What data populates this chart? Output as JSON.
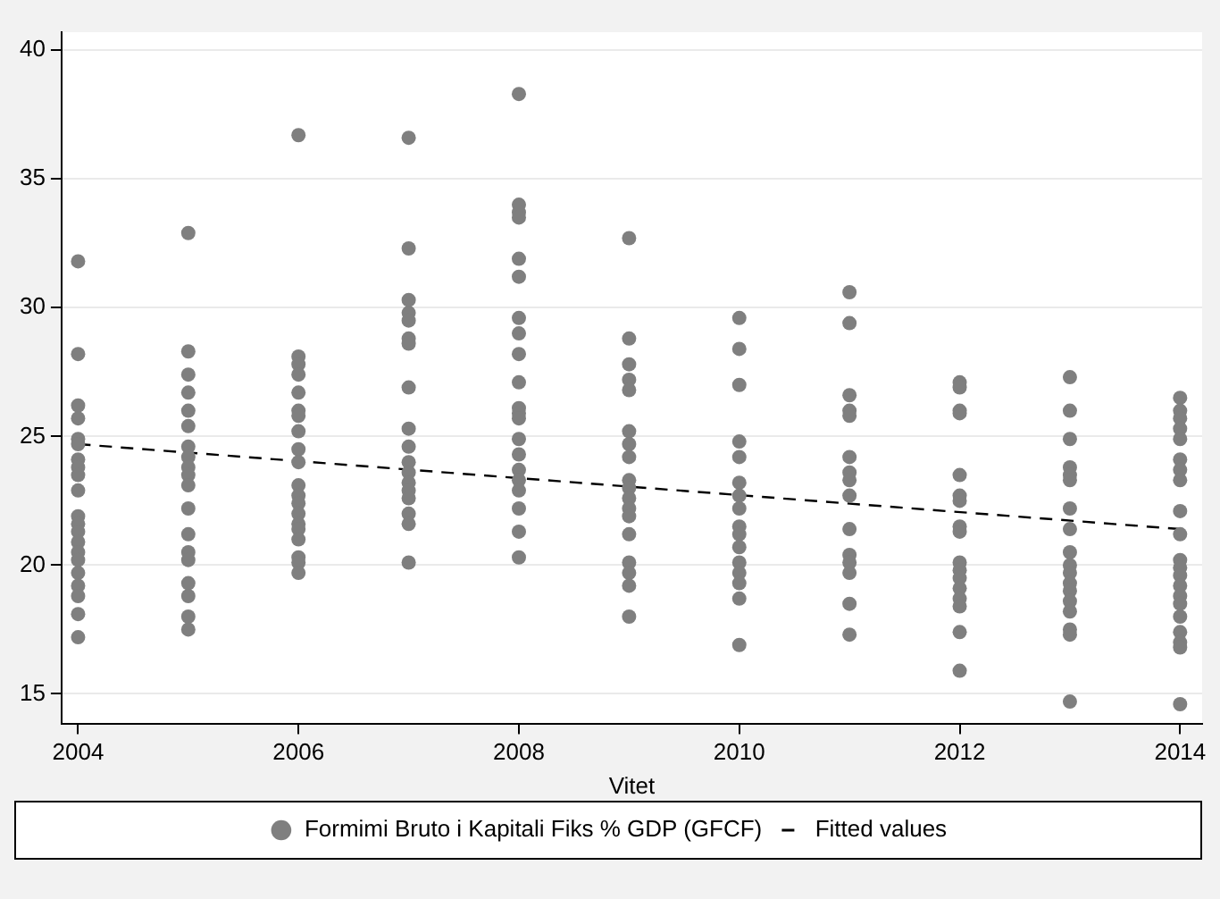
{
  "chart_data": {
    "type": "scatter",
    "xlabel": "Vitet",
    "xlim": [
      2003.85,
      2014.2
    ],
    "xticks": [
      2004,
      2006,
      2008,
      2010,
      2012,
      2014
    ],
    "ylim": [
      13.85,
      40.7
    ],
    "yticks": [
      15,
      20,
      25,
      30,
      35,
      40
    ],
    "grid": "y",
    "legend": "bottom",
    "series": [
      {
        "name": "Formimi Bruto i Kapitali Fiks % GDP (GFCF)",
        "type": "scatter",
        "color": "#7f7f7f",
        "marker": "circle",
        "x": [
          2004,
          2004,
          2004,
          2004,
          2004,
          2004,
          2004,
          2004,
          2004,
          2004,
          2004,
          2004,
          2004,
          2004,
          2004,
          2004,
          2004,
          2004,
          2004,
          2004,
          2004,
          2005,
          2005,
          2005,
          2005,
          2005,
          2005,
          2005,
          2005,
          2005,
          2005,
          2005,
          2005,
          2005,
          2005,
          2005,
          2005,
          2005,
          2005,
          2005,
          2006,
          2006,
          2006,
          2006,
          2006,
          2006,
          2006,
          2006,
          2006,
          2006,
          2006,
          2006,
          2006,
          2006,
          2006,
          2006,
          2006,
          2006,
          2006,
          2006,
          2007,
          2007,
          2007,
          2007,
          2007,
          2007,
          2007,
          2007,
          2007,
          2007,
          2007,
          2007,
          2007,
          2007,
          2007,
          2007,
          2007,
          2007,
          2008,
          2008,
          2008,
          2008,
          2008,
          2008,
          2008,
          2008,
          2008,
          2008,
          2008,
          2008,
          2008,
          2008,
          2008,
          2008,
          2008,
          2008,
          2008,
          2008,
          2008,
          2009,
          2009,
          2009,
          2009,
          2009,
          2009,
          2009,
          2009,
          2009,
          2009,
          2009,
          2009,
          2009,
          2009,
          2009,
          2009,
          2009,
          2009,
          2010,
          2010,
          2010,
          2010,
          2010,
          2010,
          2010,
          2010,
          2010,
          2010,
          2010,
          2010,
          2010,
          2010,
          2010,
          2010,
          2011,
          2011,
          2011,
          2011,
          2011,
          2011,
          2011,
          2011,
          2011,
          2011,
          2011,
          2011,
          2011,
          2011,
          2011,
          2012,
          2012,
          2012,
          2012,
          2012,
          2012,
          2012,
          2012,
          2012,
          2012,
          2012,
          2012,
          2012,
          2012,
          2012,
          2012,
          2012,
          2013,
          2013,
          2013,
          2013,
          2013,
          2013,
          2013,
          2013,
          2013,
          2013,
          2013,
          2013,
          2013,
          2013,
          2013,
          2013,
          2013,
          2013,
          2014,
          2014,
          2014,
          2014,
          2014,
          2014,
          2014,
          2014,
          2014,
          2014,
          2014,
          2014,
          2014,
          2014,
          2014,
          2014,
          2014,
          2014,
          2014,
          2014,
          2014
        ],
        "values": [
          31.8,
          28.2,
          26.2,
          25.7,
          24.9,
          24.7,
          24.1,
          23.8,
          23.5,
          22.9,
          21.9,
          21.6,
          21.3,
          20.9,
          20.5,
          20.2,
          19.7,
          19.2,
          18.8,
          18.1,
          17.2,
          32.9,
          28.3,
          27.4,
          26.7,
          26.0,
          25.4,
          24.6,
          24.2,
          23.8,
          23.5,
          23.1,
          22.2,
          21.2,
          20.5,
          20.2,
          19.3,
          18.8,
          18.0,
          17.5,
          36.7,
          28.1,
          27.8,
          27.4,
          26.7,
          26.0,
          25.8,
          25.2,
          24.5,
          24.0,
          23.1,
          22.7,
          22.4,
          22.0,
          21.6,
          21.4,
          21.0,
          20.3,
          20.1,
          19.7,
          36.6,
          32.3,
          30.3,
          29.8,
          29.5,
          28.8,
          28.6,
          26.9,
          25.3,
          24.6,
          24.0,
          23.6,
          23.2,
          22.9,
          22.6,
          22.0,
          21.6,
          20.1,
          38.3,
          34.0,
          33.7,
          33.5,
          31.9,
          31.2,
          29.6,
          29.0,
          28.2,
          27.1,
          26.1,
          25.9,
          25.7,
          24.9,
          24.3,
          23.7,
          23.3,
          22.9,
          22.2,
          21.3,
          20.3,
          32.7,
          28.8,
          27.8,
          27.2,
          26.8,
          25.2,
          24.7,
          24.2,
          23.3,
          23.0,
          22.6,
          22.2,
          21.9,
          21.2,
          20.1,
          19.7,
          19.2,
          18.0,
          29.6,
          28.4,
          27.0,
          24.8,
          24.2,
          23.2,
          22.7,
          22.2,
          21.5,
          21.2,
          20.7,
          20.1,
          19.7,
          19.3,
          18.7,
          16.9,
          30.6,
          29.4,
          26.6,
          26.0,
          25.8,
          24.2,
          23.6,
          23.3,
          22.7,
          21.4,
          20.4,
          20.1,
          19.7,
          18.5,
          17.3,
          27.1,
          26.9,
          26.0,
          25.9,
          23.5,
          22.7,
          22.5,
          21.5,
          21.3,
          20.1,
          19.8,
          19.5,
          19.1,
          18.7,
          18.4,
          17.4,
          15.9,
          27.3,
          26.0,
          24.9,
          23.8,
          23.5,
          23.3,
          22.2,
          21.4,
          20.5,
          20.0,
          19.7,
          19.3,
          19.0,
          18.6,
          18.2,
          17.5,
          17.3,
          14.7,
          26.5,
          26.0,
          25.7,
          25.3,
          24.9,
          24.1,
          23.7,
          23.3,
          22.1,
          21.2,
          20.2,
          19.9,
          19.6,
          19.2,
          18.8,
          18.5,
          18.0,
          17.4,
          17.0,
          16.8,
          14.6
        ]
      },
      {
        "name": "Fitted values",
        "type": "line",
        "color": "#000000",
        "marker": "none",
        "line_style": "dashed",
        "x": [
          2004,
          2014
        ],
        "values": [
          24.7,
          21.4
        ]
      }
    ]
  }
}
